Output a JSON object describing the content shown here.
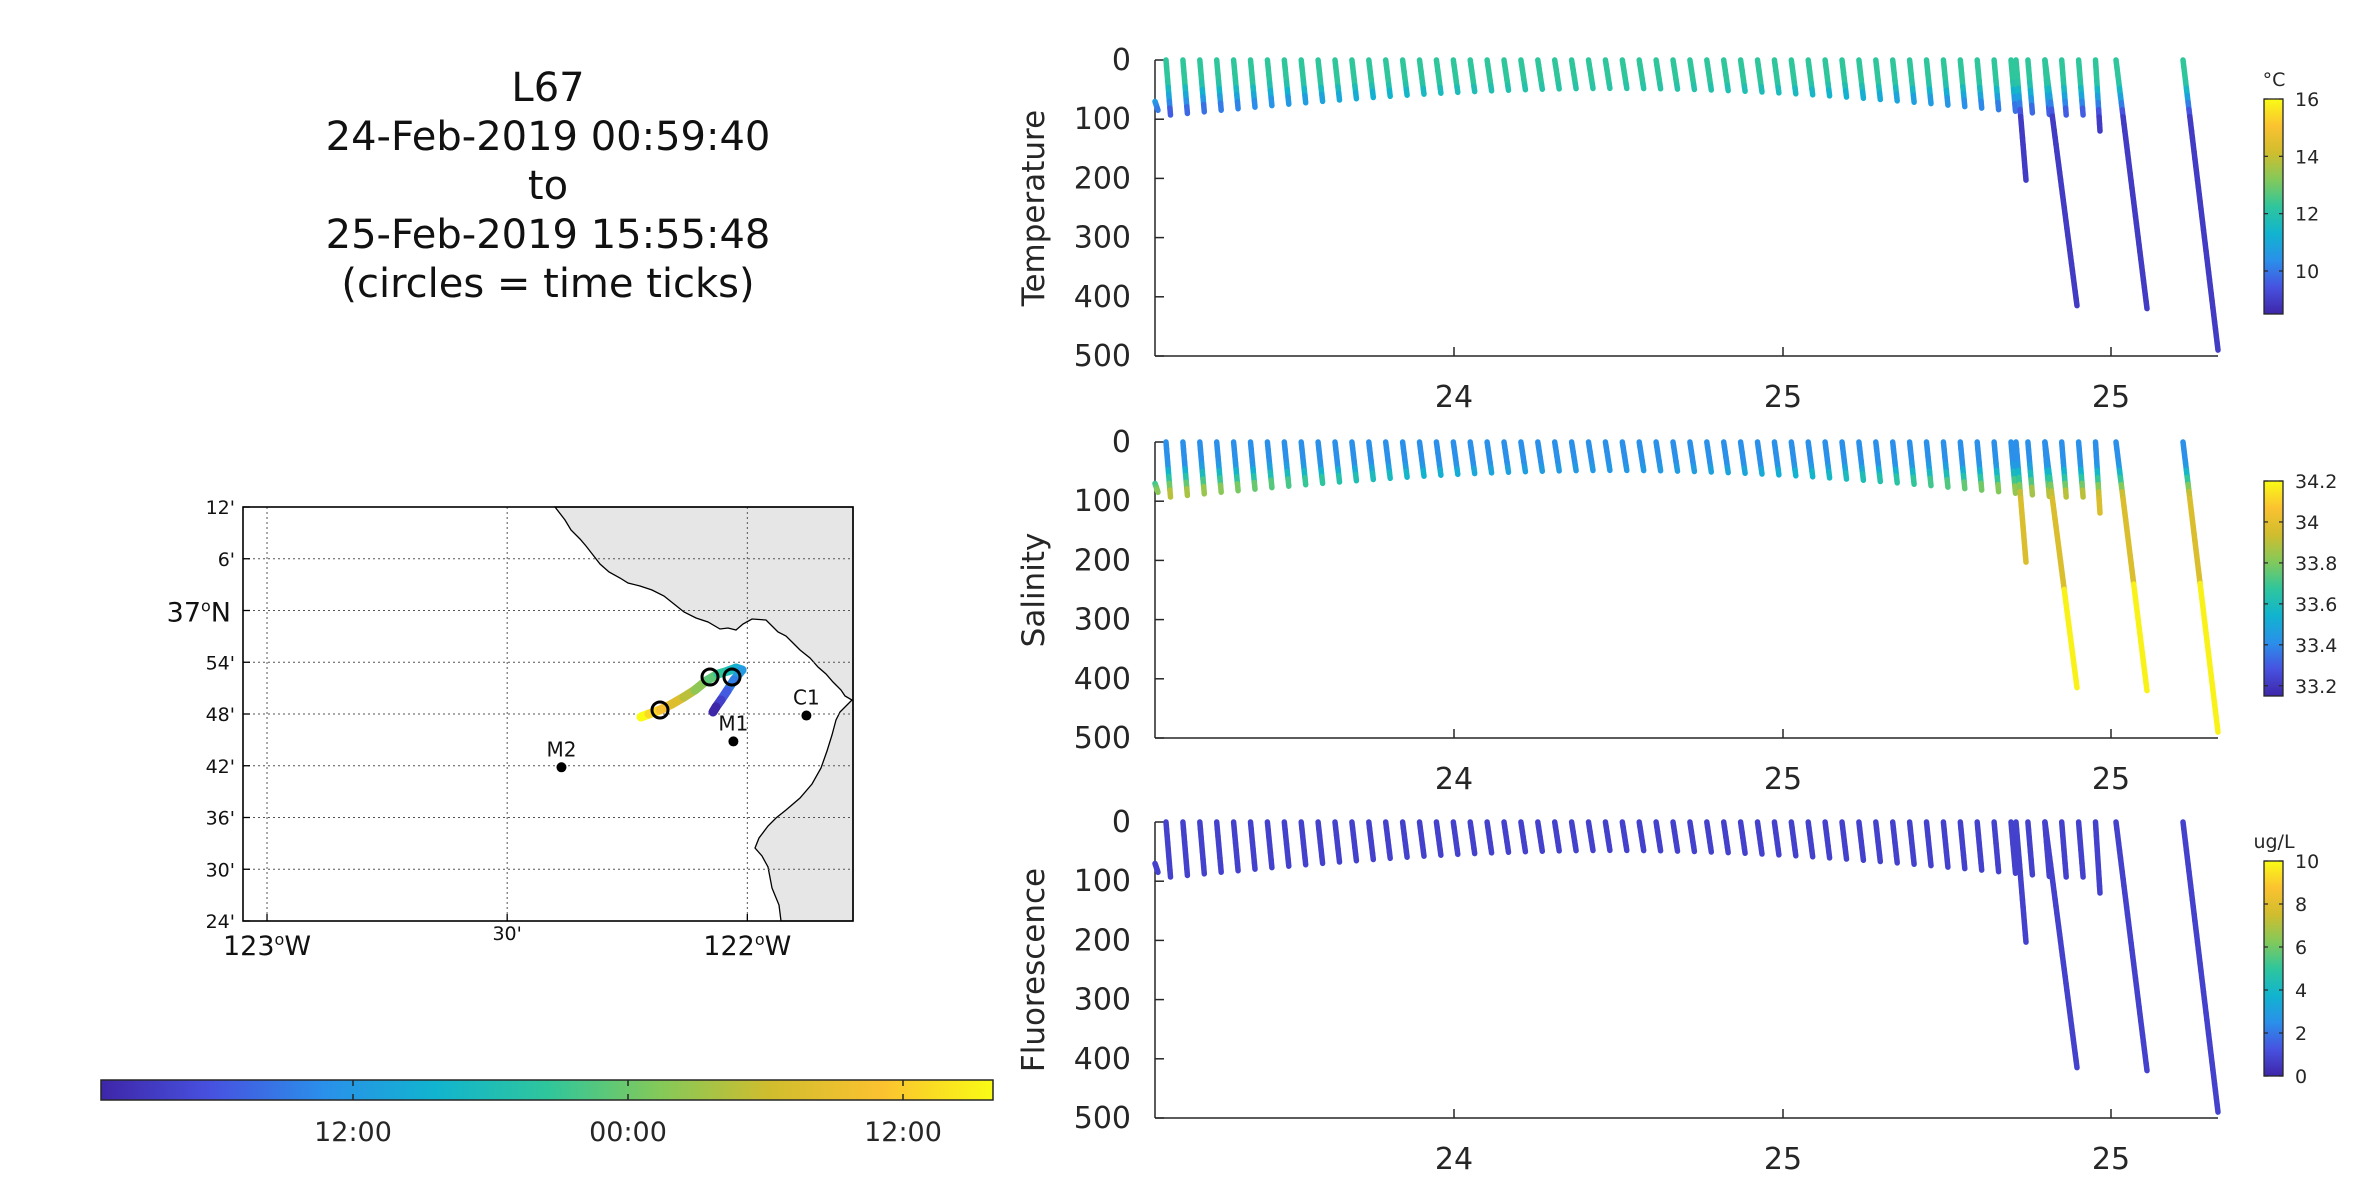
{
  "title": {
    "glider": "L67",
    "start": "24-Feb-2019 00:59:40",
    "to": "to",
    "end": "25-Feb-2019 15:55:48",
    "note": "(circles = time ticks)"
  },
  "map": {
    "lat_labels": [
      "12'",
      "6'",
      "37",
      "54'",
      "48'",
      "42'",
      "36'",
      "30'",
      "24'"
    ],
    "lon_labels": [
      "123",
      "30'",
      "122"
    ],
    "lat_major_suffix": "N",
    "lon_major_suffix": "W",
    "degree_symbol": "o",
    "stations": [
      {
        "name": "M2",
        "lon": -122.387,
        "lat": 36.697
      },
      {
        "name": "M1",
        "lon": -122.029,
        "lat": 36.747
      },
      {
        "name": "C1",
        "lon": -121.877,
        "lat": 36.797
      }
    ],
    "track_colors": [
      "#3e26a8",
      "#4352e6",
      "#2f8fea",
      "#14b5d0",
      "#2cc79e",
      "#7dc75c",
      "#c6bd2c",
      "#f6cb2f",
      "#f9fb15"
    ],
    "land_color": "#e6e6e6"
  },
  "time_colorbar": {
    "labels": [
      "12:00",
      "00:00",
      "12:00"
    ],
    "colors": [
      "#3e26a8",
      "#4752e0",
      "#2a90ea",
      "#11b4cf",
      "#2fc69c",
      "#83c95a",
      "#d0bd2e",
      "#fbc230",
      "#f9fb15"
    ]
  },
  "chart_data": [
    {
      "type": "scatter",
      "title": "",
      "xlabel": "",
      "ylabel": "Temperature",
      "x_tick_labels": [
        "24",
        "25",
        "25"
      ],
      "y_tick_labels": [
        "0",
        "100",
        "200",
        "300",
        "400",
        "500"
      ],
      "ylim": [
        500,
        0
      ],
      "colorbar": {
        "unit": "°C",
        "ticks": [
          "16",
          "14",
          "12",
          "10"
        ],
        "range": [
          8.5,
          16
        ]
      },
      "profiles": "shallow yo-yo dives to ~90 m on 24 Feb, then deep dives to ~200, 415, 420 and 490 m on 25 Feb; warmer (~12.5 °C) near surface, ~9.5 °C at depth"
    },
    {
      "type": "scatter",
      "title": "",
      "xlabel": "",
      "ylabel": "Salinity",
      "x_tick_labels": [
        "24",
        "25",
        "25"
      ],
      "y_tick_labels": [
        "0",
        "100",
        "200",
        "300",
        "400",
        "500"
      ],
      "ylim": [
        500,
        0
      ],
      "colorbar": {
        "unit": "",
        "ticks": [
          "34.2",
          "34",
          "33.8",
          "33.6",
          "33.4",
          "33.2"
        ],
        "range": [
          33.15,
          34.2
        ]
      },
      "profiles": "fresher (~33.3) near surface, saltier (~33.9–34.2) at depth"
    },
    {
      "type": "scatter",
      "title": "",
      "xlabel": "",
      "ylabel": "Fluorescence",
      "x_tick_labels": [
        "24",
        "25",
        "25"
      ],
      "y_tick_labels": [
        "0",
        "100",
        "200",
        "300",
        "400",
        "500"
      ],
      "ylim": [
        500,
        0
      ],
      "colorbar": {
        "unit": "ug/L",
        "ticks": [
          "10",
          "8",
          "6",
          "4",
          "2",
          "0"
        ],
        "range": [
          0,
          10
        ]
      },
      "profiles": "near zero throughout (~0.3 ug/L)"
    }
  ],
  "colormap": [
    "#3e26a8",
    "#4752e0",
    "#2a90ea",
    "#11b4cf",
    "#2fc69c",
    "#83c95a",
    "#d0bd2e",
    "#fbc230",
    "#f9fb15"
  ]
}
